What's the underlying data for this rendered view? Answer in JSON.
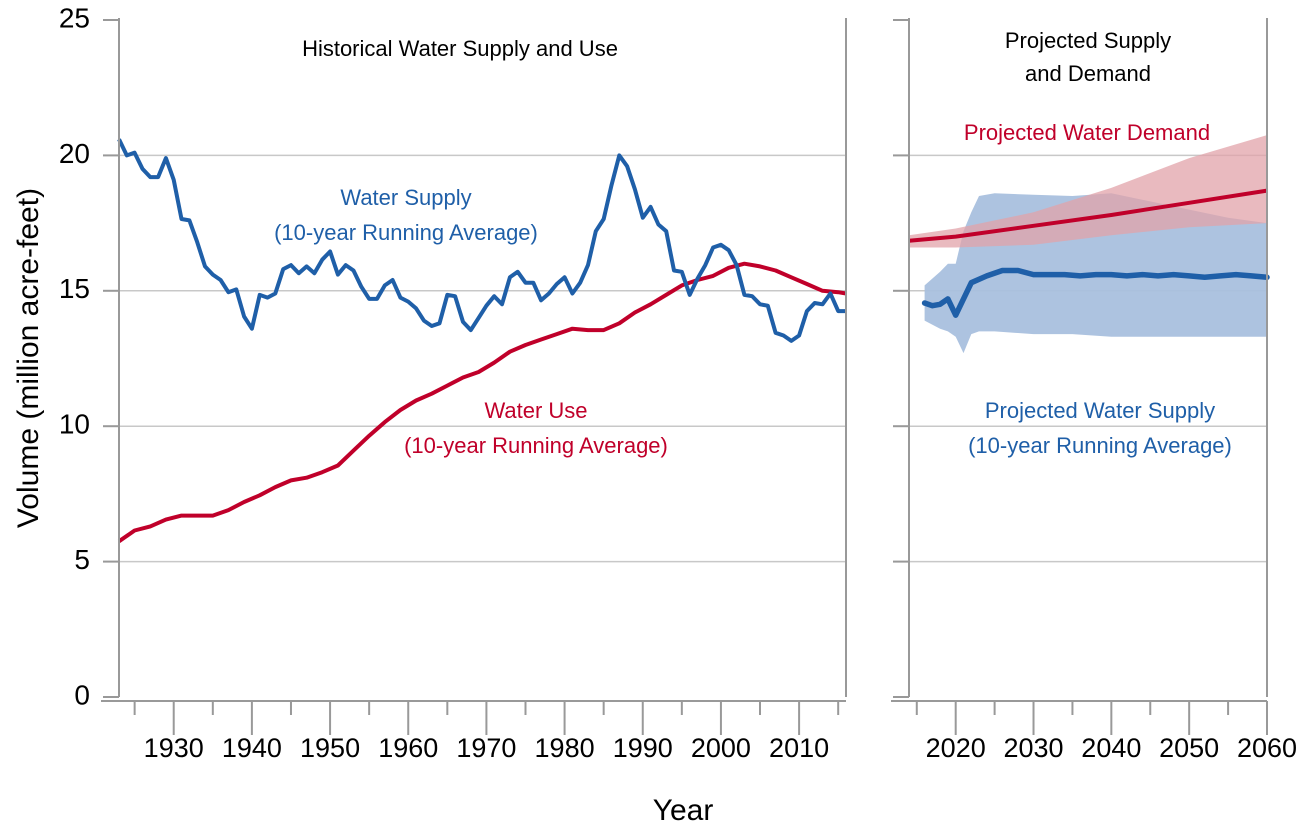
{
  "chart_data": [
    {
      "type": "line",
      "title": "Historical Water Supply and Use",
      "xlabel": "Year",
      "ylabel": "Volume (million acre-feet)",
      "xlim": [
        1923,
        2016
      ],
      "ylim": [
        0,
        25
      ],
      "x_ticks": [
        "1930",
        "1940",
        "1950",
        "1960",
        "1970",
        "1980",
        "1990",
        "2000",
        "2010"
      ],
      "y_ticks": [
        "0",
        "5",
        "10",
        "15",
        "20",
        "25"
      ],
      "grid": true,
      "colors": {
        "supply": "#1f5fa8",
        "use": "#c0002a"
      },
      "series": [
        {
          "name": "Water Supply",
          "name_line2": "(10-year Running Average)",
          "x": [
            1923,
            1924,
            1925,
            1926,
            1927,
            1928,
            1929,
            1930,
            1931,
            1932,
            1933,
            1934,
            1935,
            1936,
            1937,
            1938,
            1939,
            1940,
            1941,
            1942,
            1943,
            1944,
            1945,
            1946,
            1947,
            1948,
            1949,
            1950,
            1951,
            1952,
            1953,
            1954,
            1955,
            1956,
            1957,
            1958,
            1959,
            1960,
            1961,
            1962,
            1963,
            1964,
            1965,
            1966,
            1967,
            1968,
            1969,
            1970,
            1971,
            1972,
            1973,
            1974,
            1975,
            1976,
            1977,
            1978,
            1979,
            1980,
            1981,
            1982,
            1983,
            1984,
            1985,
            1986,
            1987,
            1988,
            1989,
            1990,
            1991,
            1992,
            1993,
            1994,
            1995,
            1996,
            1997,
            1998,
            1999,
            2000,
            2001,
            2002,
            2003,
            2004,
            2005,
            2006,
            2007,
            2008,
            2009,
            2010,
            2011,
            2012,
            2013,
            2014,
            2015,
            2016
          ],
          "y": [
            20.6,
            20.0,
            20.1,
            19.5,
            19.2,
            19.2,
            19.9,
            19.1,
            17.65,
            17.6,
            16.8,
            15.9,
            15.6,
            15.4,
            14.95,
            15.05,
            14.05,
            13.6,
            14.85,
            14.75,
            14.9,
            15.8,
            15.95,
            15.65,
            15.9,
            15.65,
            16.15,
            16.45,
            15.6,
            15.95,
            15.75,
            15.15,
            14.7,
            14.7,
            15.2,
            15.4,
            14.75,
            14.6,
            14.35,
            13.9,
            13.7,
            13.8,
            14.85,
            14.8,
            13.85,
            13.55,
            14.0,
            14.45,
            14.8,
            14.5,
            15.5,
            15.7,
            15.3,
            15.3,
            14.65,
            14.9,
            15.25,
            15.5,
            14.9,
            15.3,
            15.95,
            17.2,
            17.65,
            18.9,
            20.0,
            19.6,
            18.75,
            17.7,
            18.1,
            17.45,
            17.2,
            15.75,
            15.7,
            14.85,
            15.45,
            15.95,
            16.6,
            16.7,
            16.5,
            15.95,
            14.85,
            14.8,
            14.5,
            14.45,
            13.45,
            13.35,
            13.15,
            13.35,
            14.25,
            14.55,
            14.5,
            14.9,
            14.25,
            14.25
          ]
        },
        {
          "name": "Water Use",
          "name_line2": "(10-year Running Average)",
          "x": [
            1923,
            1925,
            1927,
            1929,
            1931,
            1933,
            1935,
            1937,
            1939,
            1941,
            1943,
            1945,
            1947,
            1949,
            1951,
            1953,
            1955,
            1957,
            1959,
            1961,
            1963,
            1965,
            1967,
            1969,
            1971,
            1973,
            1975,
            1977,
            1979,
            1981,
            1983,
            1985,
            1987,
            1989,
            1991,
            1993,
            1995,
            1997,
            1999,
            2001,
            2003,
            2005,
            2007,
            2009,
            2011,
            2013,
            2015,
            2016
          ],
          "y": [
            5.75,
            6.15,
            6.3,
            6.55,
            6.7,
            6.7,
            6.7,
            6.9,
            7.2,
            7.45,
            7.75,
            8.0,
            8.1,
            8.3,
            8.55,
            9.1,
            9.65,
            10.15,
            10.6,
            10.95,
            11.2,
            11.5,
            11.8,
            12.0,
            12.35,
            12.75,
            13.0,
            13.2,
            13.4,
            13.6,
            13.55,
            13.55,
            13.8,
            14.2,
            14.5,
            14.85,
            15.2,
            15.4,
            15.55,
            15.85,
            16.0,
            15.9,
            15.75,
            15.5,
            15.25,
            15.0,
            14.95,
            14.9
          ]
        }
      ]
    },
    {
      "type": "area",
      "title": "Projected Supply",
      "title_line2": "and Demand",
      "xlim": [
        2014,
        2060
      ],
      "ylim": [
        0,
        25
      ],
      "x_ticks": [
        "2020",
        "2030",
        "2040",
        "2050",
        "2060"
      ],
      "grid": true,
      "colors": {
        "supply": "#1f5fa8",
        "supply_band": "#a9c0de",
        "demand": "#c0002a",
        "demand_band": "#e2a3aa"
      },
      "series": [
        {
          "name": "Projected Water Demand",
          "x": [
            2014,
            2020,
            2030,
            2040,
            2050,
            2060
          ],
          "y": [
            16.85,
            17.0,
            17.4,
            17.8,
            18.25,
            18.7
          ],
          "band_x": [
            2014,
            2020,
            2030,
            2040,
            2050,
            2060
          ],
          "band_low": [
            16.6,
            16.6,
            16.7,
            17.05,
            17.35,
            17.5
          ],
          "band_high": [
            17.05,
            17.3,
            17.9,
            18.8,
            19.9,
            20.75
          ]
        },
        {
          "name": "Projected Water Supply",
          "name_line2": "(10-year Running Average)",
          "x": [
            2016,
            2017,
            2018,
            2019,
            2020,
            2022,
            2024,
            2026,
            2028,
            2030,
            2032,
            2034,
            2036,
            2038,
            2040,
            2042,
            2044,
            2046,
            2048,
            2050,
            2052,
            2054,
            2056,
            2058,
            2060
          ],
          "y": [
            14.55,
            14.45,
            14.5,
            14.7,
            14.1,
            15.3,
            15.55,
            15.75,
            15.75,
            15.6,
            15.6,
            15.6,
            15.55,
            15.6,
            15.6,
            15.55,
            15.6,
            15.55,
            15.6,
            15.55,
            15.5,
            15.55,
            15.6,
            15.55,
            15.5
          ],
          "band_x": [
            2016,
            2018,
            2019,
            2020,
            2021,
            2022,
            2023,
            2025,
            2030,
            2035,
            2040,
            2045,
            2050,
            2055,
            2060
          ],
          "band_low": [
            13.9,
            13.6,
            13.5,
            13.3,
            12.7,
            13.4,
            13.5,
            13.5,
            13.4,
            13.4,
            13.3,
            13.3,
            13.3,
            13.3,
            13.3
          ],
          "band_high": [
            15.2,
            15.7,
            16.0,
            16.0,
            17.2,
            17.9,
            18.5,
            18.6,
            18.55,
            18.5,
            18.6,
            18.3,
            18.0,
            17.7,
            17.5
          ]
        }
      ]
    }
  ]
}
